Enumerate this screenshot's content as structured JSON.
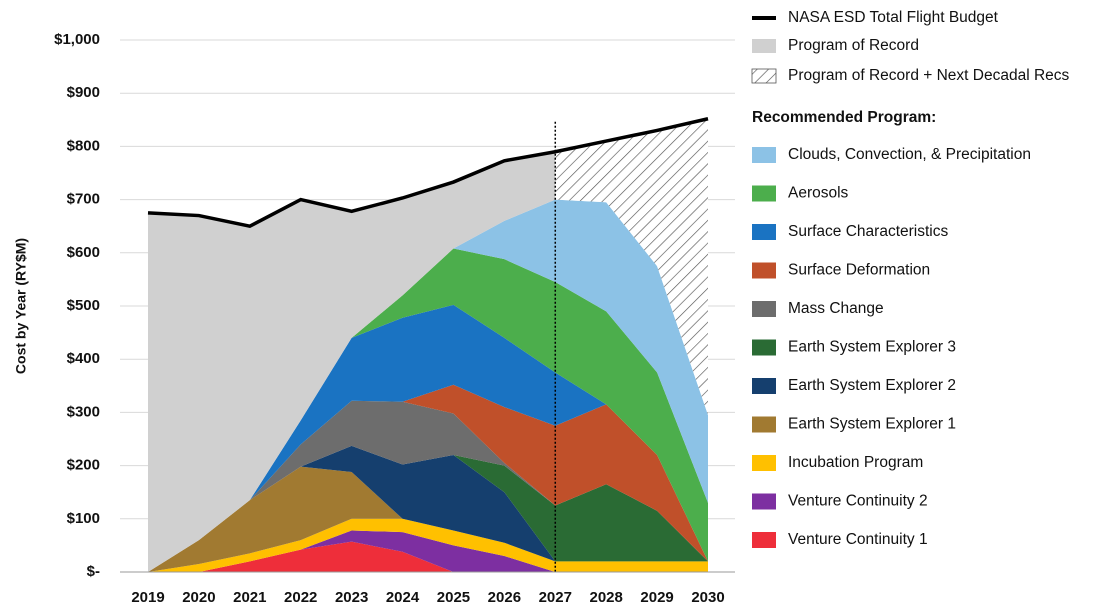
{
  "chart_data": {
    "type": "area",
    "y_label": "Cost by Year (RY$M)",
    "categories": [
      "2019",
      "2020",
      "2021",
      "2022",
      "2023",
      "2024",
      "2025",
      "2026",
      "2027",
      "2028",
      "2029",
      "2030"
    ],
    "ylim": [
      0,
      1000
    ],
    "yticks": [
      {
        "value": 0,
        "label": "$-"
      },
      {
        "value": 100,
        "label": "$100"
      },
      {
        "value": 200,
        "label": "$200"
      },
      {
        "value": 300,
        "label": "$300"
      },
      {
        "value": 400,
        "label": "$400"
      },
      {
        "value": 500,
        "label": "$500"
      },
      {
        "value": 600,
        "label": "$600"
      },
      {
        "value": 700,
        "label": "$700"
      },
      {
        "value": 800,
        "label": "$800"
      },
      {
        "value": 900,
        "label": "$900"
      },
      {
        "value": 1000,
        "label": "$1,000"
      }
    ],
    "grid": true,
    "budget": {
      "name": "NASA ESD Total Flight Budget",
      "color": "#000000",
      "values": [
        675,
        670,
        650,
        700,
        678,
        703,
        733,
        773,
        790,
        810,
        830,
        852
      ]
    },
    "program_of_record": {
      "name": "Program of Record",
      "color": "#d0d0d0",
      "values": [
        675,
        610,
        515,
        415,
        238,
        183,
        125,
        113,
        90,
        null,
        null,
        null
      ]
    },
    "program_plus": {
      "name": "Program of Record + Next Decadal Recs",
      "color": "#555555",
      "values": [
        null,
        null,
        null,
        null,
        null,
        null,
        null,
        null,
        90,
        115,
        255,
        557
      ]
    },
    "legend_heading": "Recommended Program:",
    "series": [
      {
        "name": "Clouds, Convection, & Precipitation",
        "color": "#8cc2e6",
        "values": [
          0,
          0,
          0,
          0,
          0,
          0,
          0,
          72,
          155,
          205,
          200,
          165
        ]
      },
      {
        "name": "Aerosols",
        "color": "#4cae4c",
        "values": [
          0,
          0,
          0,
          0,
          0,
          42,
          106,
          148,
          170,
          175,
          155,
          110
        ]
      },
      {
        "name": "Surface Characteristics",
        "color": "#1a73c2",
        "values": [
          0,
          0,
          0,
          45,
          118,
          158,
          150,
          130,
          100,
          0,
          0,
          0
        ]
      },
      {
        "name": "Surface Deformation",
        "color": "#c0502a",
        "values": [
          0,
          0,
          0,
          0,
          0,
          0,
          54,
          105,
          150,
          150,
          105,
          0
        ]
      },
      {
        "name": "Mass Change",
        "color": "#6d6d6d",
        "values": [
          0,
          0,
          0,
          42,
          85,
          118,
          78,
          5,
          0,
          0,
          0,
          0
        ]
      },
      {
        "name": "Earth System Explorer 3",
        "color": "#2a6b34",
        "values": [
          0,
          0,
          0,
          0,
          0,
          0,
          0,
          50,
          105,
          145,
          95,
          0
        ]
      },
      {
        "name": "Earth System Explorer 2",
        "color": "#153f6e",
        "values": [
          0,
          0,
          0,
          0,
          49,
          102,
          142,
          95,
          0,
          0,
          0,
          0
        ]
      },
      {
        "name": "Earth System Explorer 1",
        "color": "#a17a31",
        "values": [
          0,
          45,
          100,
          138,
          88,
          0,
          0,
          0,
          0,
          0,
          0,
          0
        ]
      },
      {
        "name": "Incubation Program",
        "color": "#ffc000",
        "values": [
          0,
          15,
          15,
          18,
          22,
          25,
          28,
          25,
          20,
          20,
          20,
          20
        ]
      },
      {
        "name": "Venture Continuity 2",
        "color": "#7d2fa1",
        "values": [
          0,
          0,
          0,
          0,
          21,
          37,
          50,
          30,
          0,
          0,
          0,
          0
        ]
      },
      {
        "name": "Venture Continuity 1",
        "color": "#ee2e3a",
        "values": [
          0,
          0,
          20,
          42,
          57,
          38,
          0,
          0,
          0,
          0,
          0,
          0
        ]
      }
    ]
  }
}
